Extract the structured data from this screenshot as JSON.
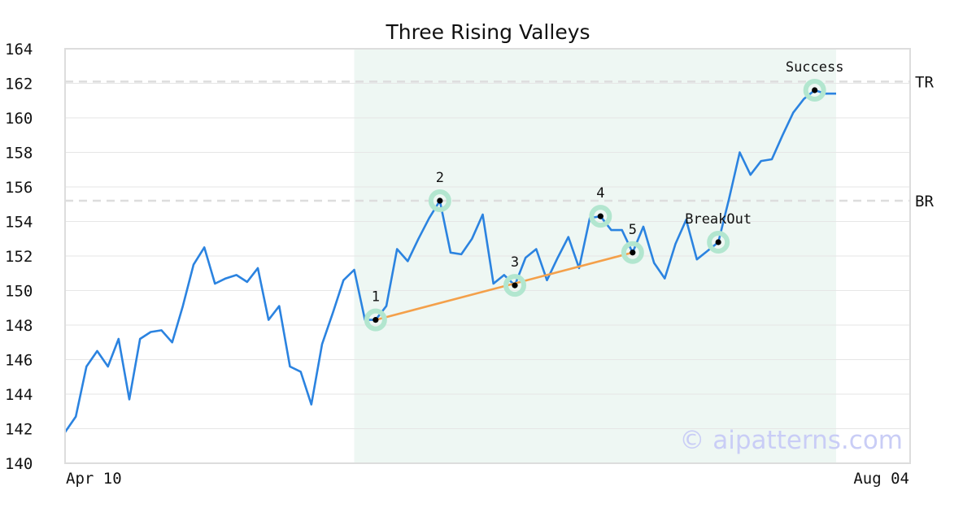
{
  "chart_data": {
    "type": "line",
    "title": "Three Rising Valleys",
    "xlabel": "",
    "ylabel": "",
    "ylim": [
      140,
      164
    ],
    "yticks": [
      140,
      142,
      144,
      146,
      148,
      150,
      152,
      154,
      156,
      158,
      160,
      162,
      164
    ],
    "x_tick_labels": [
      "Apr 10",
      "Aug 04"
    ],
    "grid": true,
    "series": [
      {
        "color": "#2b83e0",
        "values": [
          141.8,
          142.7,
          145.6,
          146.5,
          145.6,
          147.2,
          143.7,
          147.2,
          147.6,
          147.7,
          147.0,
          149.1,
          151.5,
          152.5,
          150.4,
          150.7,
          150.9,
          150.5,
          151.3,
          148.3,
          149.1,
          145.6,
          145.3,
          143.4,
          146.9,
          148.7,
          150.6,
          151.2,
          148.3,
          148.3,
          149.1,
          152.4,
          151.7,
          153.0,
          154.2,
          155.2,
          152.2,
          152.1,
          153.0,
          154.4,
          150.4,
          150.9,
          150.3,
          151.9,
          152.4,
          150.6,
          151.9,
          153.1,
          151.3,
          154.2,
          154.3,
          153.5,
          153.5,
          152.2,
          153.7,
          151.6,
          150.7,
          152.7,
          154.1,
          151.8,
          152.3,
          152.8,
          155.3,
          158.0,
          156.7,
          157.5,
          157.6,
          159.0,
          160.3,
          161.1,
          161.6,
          161.4,
          161.4
        ]
      }
    ],
    "highlight_region": {
      "start_index": 27,
      "end_index": 72,
      "color": "#eef7f3"
    },
    "reference_lines": [
      {
        "label": "TR",
        "value": 162.1
      },
      {
        "label": "BR",
        "value": 155.2
      }
    ],
    "trendline": {
      "color": "#f4a04a",
      "from_index": 29,
      "to_index": 53
    },
    "annotations": [
      {
        "label": "1",
        "index": 29,
        "value": 148.3
      },
      {
        "label": "2",
        "index": 35,
        "value": 155.2
      },
      {
        "label": "3",
        "index": 42,
        "value": 150.3
      },
      {
        "label": "4",
        "index": 50,
        "value": 154.3
      },
      {
        "label": "5",
        "index": 53,
        "value": 152.2
      },
      {
        "label": "BreakOut",
        "index": 61,
        "value": 152.8
      },
      {
        "label": "Success",
        "index": 70,
        "value": 161.6
      }
    ],
    "watermark": "© aipatterns.com"
  }
}
